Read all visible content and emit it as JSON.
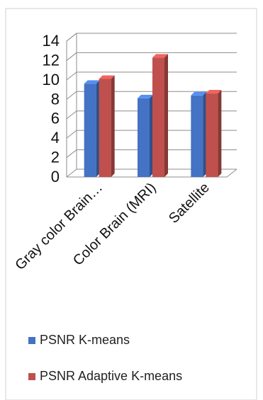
{
  "chart_data": {
    "type": "bar",
    "title": "",
    "xlabel": "",
    "ylabel": "",
    "categories": [
      "Gray color Brain…",
      "Color Brain (MRI)",
      "Satellite"
    ],
    "series": [
      {
        "name": "PSNR K-means",
        "color": "#4472C4",
        "values": [
          9.6,
          8.1,
          8.4
        ]
      },
      {
        "name": "PSNR Adaptive K-means",
        "color": "#C0504D",
        "values": [
          10.1,
          12.3,
          8.6
        ]
      }
    ],
    "ylim": [
      0,
      14
    ],
    "yticks": [
      "0",
      "2",
      "4",
      "6",
      "8",
      "10",
      "12",
      "14"
    ],
    "grid": true,
    "legend_position": "bottom"
  }
}
